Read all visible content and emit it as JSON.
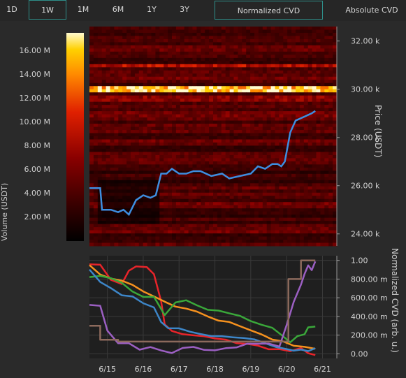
{
  "toolbar": {
    "ranges": [
      "1D",
      "1W",
      "1M",
      "6M",
      "1Y",
      "3Y"
    ],
    "active_range": "1W",
    "modes": [
      "Normalized CVD",
      "Absolute CVD"
    ],
    "active_mode": "Normalized CVD"
  },
  "colors": {
    "background": "#2a2a2a",
    "accent": "#2e8f8a",
    "price_line": "#3d8ee0",
    "cvd_series": [
      "#e8242a",
      "#f5911e",
      "#3aa83a",
      "#3d86c8",
      "#9b5fc2",
      "#8c6a5c"
    ]
  },
  "chart_data": [
    {
      "type": "heatmap",
      "colorbar_label": "Volume (USDT)",
      "colorbar_ticks": [
        "2.00 M",
        "4.00 M",
        "6.00 M",
        "8.00 M",
        "10.00 M",
        "12.00 M",
        "14.00 M",
        "16.00 M"
      ],
      "colorbar_range": [
        0,
        17.5
      ],
      "ylabel": "Price (USDT)",
      "y_ticks": [
        "24.00 k",
        "26.00 k",
        "28.00 k",
        "30.00 k",
        "32.00 k"
      ],
      "ylim": [
        23.5,
        32.6
      ],
      "xlim": [
        0,
        6.9
      ],
      "price_series": {
        "x": [
          0,
          0.3,
          0.35,
          0.6,
          0.8,
          0.95,
          1.1,
          1.3,
          1.5,
          1.7,
          1.85,
          2.0,
          2.15,
          2.3,
          2.5,
          2.7,
          2.9,
          3.1,
          3.4,
          3.7,
          3.9,
          4.2,
          4.5,
          4.7,
          4.9,
          5.1,
          5.25,
          5.35,
          5.45,
          5.6,
          5.75,
          5.9,
          6.05,
          6.2,
          6.3
        ],
        "y": [
          25.9,
          25.9,
          25.0,
          25.0,
          24.9,
          25.0,
          24.8,
          25.4,
          25.6,
          25.5,
          25.6,
          26.5,
          26.5,
          26.7,
          26.5,
          26.5,
          26.6,
          26.6,
          26.4,
          26.5,
          26.3,
          26.4,
          26.5,
          26.8,
          26.7,
          26.9,
          26.9,
          26.8,
          27.0,
          28.2,
          28.7,
          28.8,
          28.9,
          29.0,
          29.1
        ]
      },
      "bright_levels": [
        {
          "price": 30.0,
          "volume": 17.0
        },
        {
          "price": 31.0,
          "volume": 9.0
        },
        {
          "price": 29.6,
          "volume": 7.0
        },
        {
          "price": 28.9,
          "volume": 6.0
        },
        {
          "price": 27.2,
          "volume": 5.0
        },
        {
          "price": 31.7,
          "volume": 5.5
        },
        {
          "price": 25.3,
          "volume": 4.5
        },
        {
          "price": 24.2,
          "volume": 4.0
        }
      ]
    },
    {
      "type": "line",
      "ylabel": "Normalized CVD (arb. u.)",
      "y_ticks": [
        "0.00",
        "200.00 m",
        "400.00 m",
        "600.00 m",
        "800.00 m",
        "1.00"
      ],
      "ylim": [
        -0.05,
        1.05
      ],
      "x_ticks": [
        "6/15",
        "6/16",
        "6/17",
        "6/18",
        "6/19",
        "6/20",
        "6/21"
      ],
      "xlim": [
        0,
        6.9
      ],
      "series": [
        {
          "color": "#e8242a",
          "x": [
            0,
            0.3,
            0.6,
            0.9,
            1.1,
            1.3,
            1.6,
            1.8,
            2.0,
            2.1,
            2.3,
            2.6,
            2.9,
            3.2,
            3.5,
            3.8,
            4.1,
            4.4,
            4.7,
            5.0,
            5.3,
            5.6,
            5.9,
            6.1,
            6.3
          ],
          "y": [
            0.96,
            0.95,
            0.8,
            0.75,
            0.9,
            0.95,
            0.92,
            0.85,
            0.55,
            0.3,
            0.25,
            0.22,
            0.2,
            0.18,
            0.17,
            0.15,
            0.12,
            0.1,
            0.08,
            0.05,
            0.04,
            0.03,
            0.06,
            0.02,
            0.0
          ]
        },
        {
          "color": "#f5911e",
          "x": [
            0,
            0.3,
            0.6,
            0.9,
            1.2,
            1.5,
            1.8,
            2.1,
            2.4,
            2.7,
            3.0,
            3.3,
            3.6,
            3.9,
            4.2,
            4.5,
            4.8,
            5.1,
            5.4,
            5.7,
            6.0,
            6.3
          ],
          "y": [
            0.95,
            0.85,
            0.82,
            0.78,
            0.75,
            0.68,
            0.62,
            0.56,
            0.5,
            0.47,
            0.44,
            0.41,
            0.37,
            0.33,
            0.28,
            0.24,
            0.2,
            0.15,
            0.12,
            0.1,
            0.08,
            0.05
          ]
        },
        {
          "color": "#3aa83a",
          "x": [
            0,
            0.3,
            0.6,
            0.9,
            1.2,
            1.5,
            1.8,
            2.1,
            2.4,
            2.7,
            3.0,
            3.3,
            3.6,
            3.9,
            4.2,
            4.5,
            4.8,
            5.1,
            5.4,
            5.6,
            5.8,
            6.0,
            6.1,
            6.3
          ],
          "y": [
            0.82,
            0.84,
            0.8,
            0.75,
            0.68,
            0.62,
            0.6,
            0.42,
            0.55,
            0.56,
            0.52,
            0.48,
            0.46,
            0.42,
            0.4,
            0.36,
            0.32,
            0.28,
            0.2,
            0.12,
            0.18,
            0.2,
            0.28,
            0.3
          ]
        },
        {
          "color": "#3d86c8",
          "x": [
            0,
            0.3,
            0.6,
            0.9,
            1.2,
            1.5,
            1.8,
            2.0,
            2.2,
            2.5,
            2.8,
            3.1,
            3.4,
            3.7,
            4.0,
            4.3,
            4.6,
            4.9,
            5.2,
            5.5,
            5.7,
            5.9,
            6.1,
            6.3
          ],
          "y": [
            0.9,
            0.78,
            0.7,
            0.64,
            0.6,
            0.55,
            0.5,
            0.35,
            0.28,
            0.26,
            0.25,
            0.22,
            0.2,
            0.2,
            0.18,
            0.17,
            0.15,
            0.12,
            0.08,
            0.06,
            0.04,
            0.03,
            0.04,
            0.05
          ]
        },
        {
          "color": "#9b5fc2",
          "x": [
            0,
            0.3,
            0.5,
            0.8,
            1.1,
            1.4,
            1.7,
            2.0,
            2.3,
            2.6,
            2.9,
            3.2,
            3.5,
            3.8,
            4.1,
            4.4,
            4.7,
            5.0,
            5.3,
            5.5,
            5.7,
            5.9,
            6.0,
            6.1,
            6.2,
            6.3
          ],
          "y": [
            0.52,
            0.5,
            0.25,
            0.12,
            0.1,
            0.05,
            0.06,
            0.05,
            0.02,
            0.05,
            0.07,
            0.05,
            0.03,
            0.07,
            0.08,
            0.1,
            0.12,
            0.12,
            0.08,
            0.3,
            0.55,
            0.75,
            0.85,
            0.95,
            0.9,
            1.0
          ]
        },
        {
          "color": "#8c6a5c",
          "x": [
            0,
            0.3,
            0.3,
            0.8,
            0.8,
            5.2,
            5.2,
            5.55,
            5.55,
            5.9,
            5.9,
            6.3
          ],
          "y": [
            0.3,
            0.3,
            0.15,
            0.15,
            0.13,
            0.13,
            0.13,
            0.13,
            0.8,
            0.8,
            1.0,
            1.0
          ]
        }
      ]
    }
  ]
}
